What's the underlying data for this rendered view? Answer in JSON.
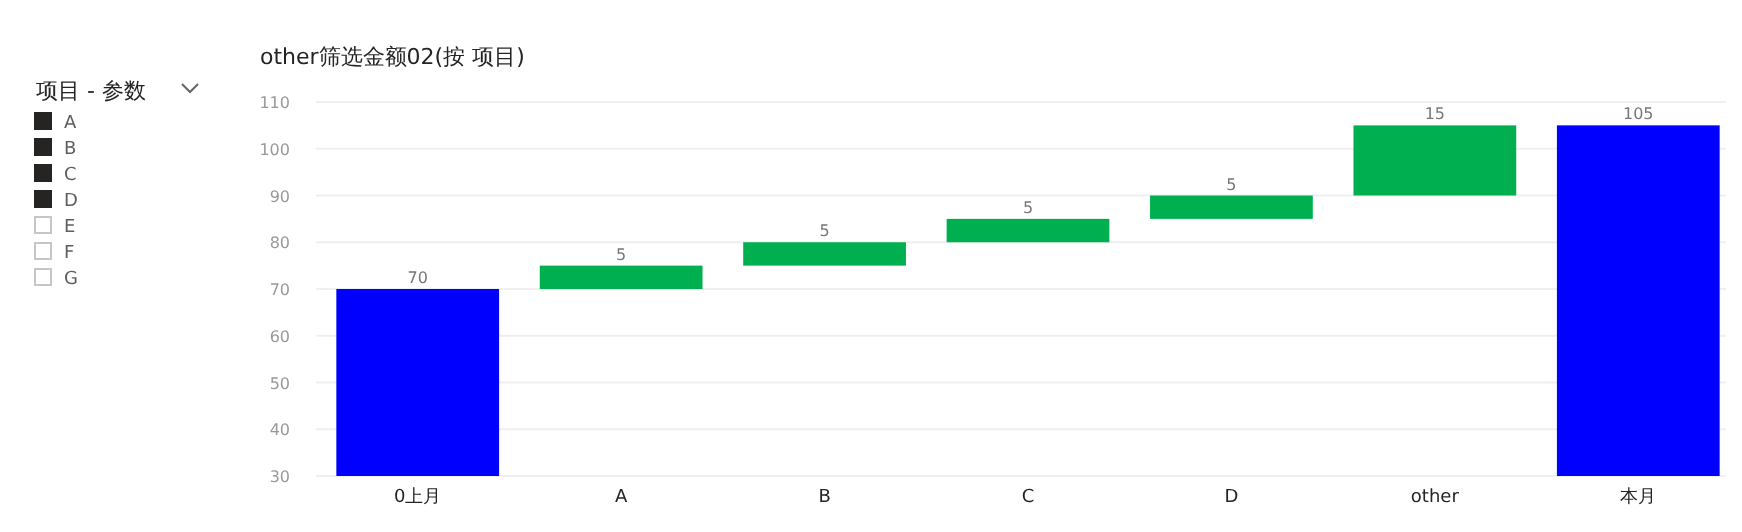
{
  "chart_data": [
    {
      "type": "other",
      "title": "项目 - 参数",
      "annotations": [
        "A",
        "B",
        "C",
        "D",
        "E",
        "F",
        "G"
      ]
    },
    {
      "type": "bar",
      "title": "other筛选金额02(按 项目)",
      "categories": [
        "0上月",
        "A",
        "B",
        "C",
        "D",
        "other",
        "本月"
      ],
      "values": [
        70,
        5,
        5,
        5,
        5,
        15,
        105
      ],
      "base": [
        null,
        70,
        75,
        80,
        85,
        90,
        null
      ],
      "colors": [
        "#0000ff",
        "#00b050",
        "#00b050",
        "#00b050",
        "#00b050",
        "#00b050",
        "#0000ff"
      ],
      "ylim": [
        30,
        110
      ],
      "yticks": [
        30,
        40,
        50,
        60,
        70,
        80,
        90,
        100,
        110
      ],
      "grid": "y",
      "data_labels": true
    }
  ]
}
